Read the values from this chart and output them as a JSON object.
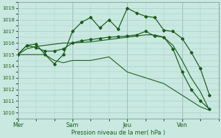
{
  "background_color": "#c8e8e0",
  "grid_color": "#a8cccc",
  "line_color": "#1a5c1a",
  "marker_color": "#1a5c1a",
  "xlabel": "Pression niveau de la mer( hPa )",
  "ylim": [
    1009.5,
    1019.5
  ],
  "yticks": [
    1010,
    1011,
    1012,
    1013,
    1014,
    1015,
    1016,
    1017,
    1018,
    1019
  ],
  "day_labels": [
    "Mer",
    "Sam",
    "Jeu",
    "Ven"
  ],
  "day_positions": [
    0,
    3,
    6,
    9
  ],
  "xlim": [
    0,
    11
  ],
  "series1_x": [
    0,
    0.5,
    1.0,
    1.5,
    2.0,
    2.5,
    3.0,
    3.5,
    4.0,
    4.5,
    5.0,
    5.5,
    6.0,
    6.5,
    7.0,
    7.5,
    8.0,
    8.5,
    9.0,
    9.5,
    10.0,
    10.5
  ],
  "series1_y": [
    1015.0,
    1015.8,
    1015.9,
    1015.0,
    1014.2,
    1015.0,
    1017.0,
    1017.8,
    1018.2,
    1017.3,
    1018.0,
    1017.2,
    1019.0,
    1018.6,
    1018.3,
    1018.2,
    1017.1,
    1017.0,
    1016.4,
    1015.2,
    1013.8,
    1011.5
  ],
  "series2_x": [
    0,
    0.5,
    1.0,
    1.5,
    2.0,
    2.5,
    3.0,
    3.5,
    4.0,
    4.5,
    5.0,
    5.5,
    6.0,
    6.5,
    7.0,
    7.5,
    8.0,
    8.5,
    9.0,
    9.5,
    10.0,
    10.5
  ],
  "series2_y": [
    1015.0,
    1015.8,
    1015.6,
    1015.3,
    1015.3,
    1015.5,
    1016.0,
    1016.2,
    1016.3,
    1016.4,
    1016.5,
    1016.55,
    1016.6,
    1016.7,
    1017.0,
    1016.6,
    1016.5,
    1015.5,
    1013.5,
    1012.0,
    1011.0,
    1010.3
  ],
  "series3_x": [
    0,
    0.5,
    1.0,
    1.5,
    2.0,
    2.5,
    3.0,
    3.5,
    4.0,
    4.5,
    5.0,
    5.5,
    6.0,
    6.5,
    7.0,
    7.5,
    8.0,
    8.5,
    9.0,
    9.5,
    10.0,
    10.5
  ],
  "series3_y": [
    1015.0,
    1015.5,
    1015.7,
    1015.8,
    1015.9,
    1016.0,
    1016.0,
    1016.05,
    1016.1,
    1016.2,
    1016.3,
    1016.4,
    1016.5,
    1016.6,
    1016.7,
    1016.7,
    1016.5,
    1015.8,
    1014.5,
    1013.0,
    1011.8,
    1010.2
  ],
  "series4_x": [
    0,
    1.5,
    2.0,
    2.5,
    3.0,
    4.0,
    5.0,
    6.0,
    7.0,
    8.0,
    9.0,
    10.0,
    10.5
  ],
  "series4_y": [
    1015.0,
    1015.0,
    1014.5,
    1014.3,
    1014.5,
    1014.5,
    1014.8,
    1013.5,
    1013.0,
    1012.5,
    1011.5,
    1010.5,
    1010.2
  ]
}
